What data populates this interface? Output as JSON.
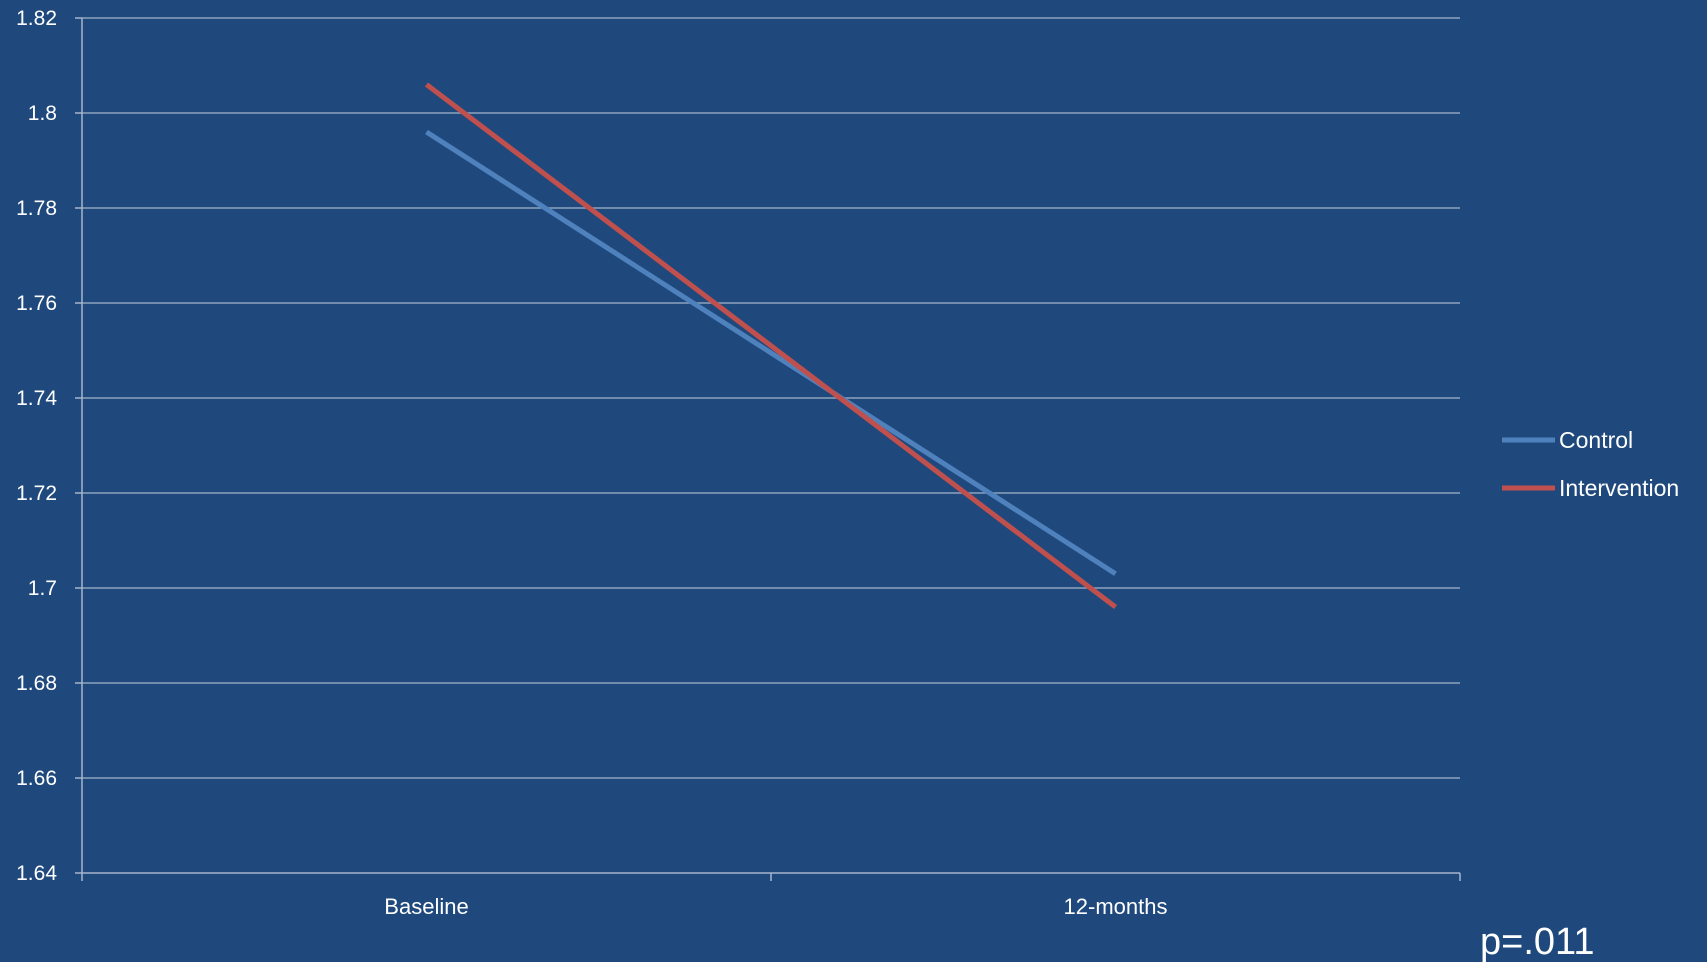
{
  "chart_data": {
    "type": "line",
    "categories": [
      "Baseline",
      "12-months"
    ],
    "series": [
      {
        "name": "Control",
        "values": [
          1.796,
          1.703
        ],
        "color": "#4F81BD"
      },
      {
        "name": "Intervention",
        "values": [
          1.806,
          1.696
        ],
        "color": "#C0504D"
      }
    ],
    "ylim": [
      1.64,
      1.82
    ],
    "y_ticks": [
      "1.64",
      "1.66",
      "1.68",
      "1.7",
      "1.72",
      "1.74",
      "1.76",
      "1.78",
      "1.8",
      "1.82"
    ],
    "grid": true,
    "legend_position": "right",
    "annotation": "p=.011",
    "colors": {
      "background": "#1F497D",
      "gridline": "#8EA2BF",
      "axis": "#A6B6CC",
      "text": "#FFFFFF"
    }
  }
}
